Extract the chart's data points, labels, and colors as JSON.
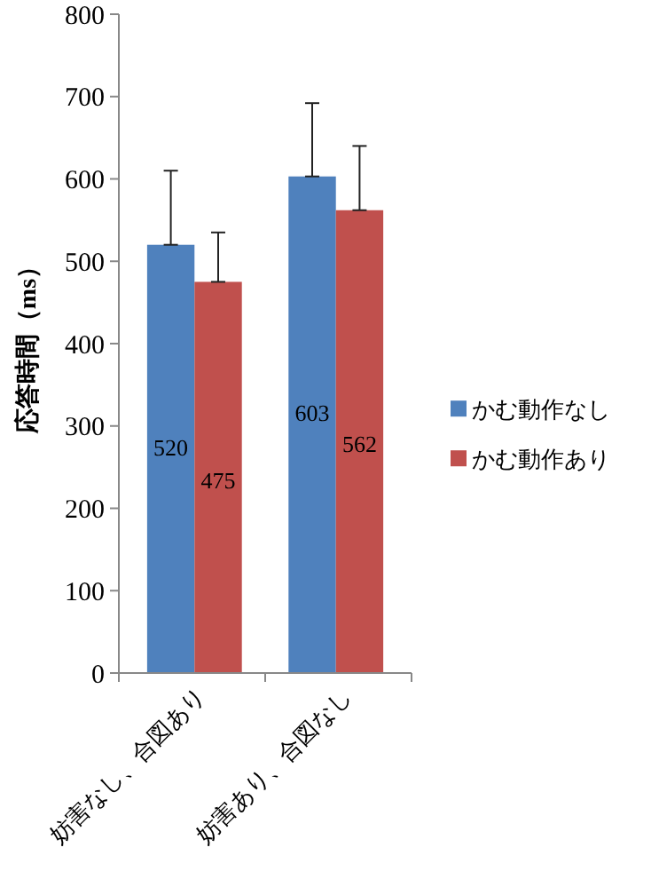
{
  "chart_data": {
    "type": "bar",
    "ylabel": "応答時間（ms）",
    "categories": [
      "妨害なし、合図あり",
      "妨害あり、合図なし"
    ],
    "series": [
      {
        "name": "かむ動作なし",
        "color": "#4f81bd",
        "values": [
          520,
          603
        ],
        "errors": [
          [
            520,
            610
          ],
          [
            603,
            692
          ]
        ]
      },
      {
        "name": "かむ動作あり",
        "color": "#c0504d",
        "values": [
          475,
          562
        ],
        "errors": [
          [
            475,
            535
          ],
          [
            562,
            640
          ]
        ]
      }
    ],
    "ylim": [
      0,
      800
    ],
    "yticks": [
      0,
      100,
      200,
      300,
      400,
      500,
      600,
      700,
      800
    ],
    "data_labels": true,
    "legend": "right",
    "grid": false
  }
}
